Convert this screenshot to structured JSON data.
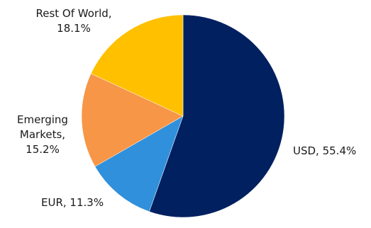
{
  "chart_data": {
    "type": "pie",
    "title": "",
    "categories": [
      "USD",
      "EUR",
      "Emerging Markets",
      "Rest Of World"
    ],
    "values": [
      55.4,
      11.3,
      15.2,
      18.1
    ],
    "unit": "%",
    "colors": [
      "#002060",
      "#3090DC",
      "#F79646",
      "#FFC000"
    ],
    "labels": [
      {
        "lines": [
          "USD, 55.4%"
        ]
      },
      {
        "lines": [
          "EUR, 11.3%"
        ]
      },
      {
        "lines": [
          "Emerging",
          "Markets,",
          "15.2%"
        ]
      },
      {
        "lines": [
          "Rest Of World,",
          "18.1%"
        ]
      }
    ]
  }
}
